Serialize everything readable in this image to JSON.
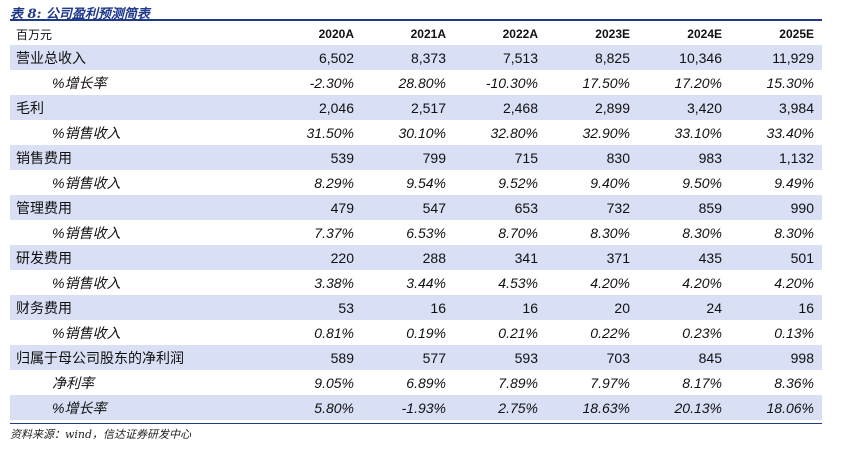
{
  "title": "表 8:  公司盈利预测简表",
  "header": [
    "百万元",
    "2020A",
    "2021A",
    "2022A",
    "2023E",
    "2024E",
    "2025E"
  ],
  "rows": [
    {
      "label": "营业总收入",
      "kind": "main",
      "values": [
        "6,502",
        "8,373",
        "7,513",
        "8,825",
        "10,346",
        "11,929"
      ]
    },
    {
      "label": "%增长率",
      "kind": "sub",
      "values": [
        "-2.30%",
        "28.80%",
        "-10.30%",
        "17.50%",
        "17.20%",
        "15.30%"
      ]
    },
    {
      "label": "毛利",
      "kind": "main",
      "values": [
        "2,046",
        "2,517",
        "2,468",
        "2,899",
        "3,420",
        "3,984"
      ]
    },
    {
      "label": "%销售收入",
      "kind": "sub",
      "values": [
        "31.50%",
        "30.10%",
        "32.80%",
        "32.90%",
        "33.10%",
        "33.40%"
      ]
    },
    {
      "label": "销售费用",
      "kind": "main",
      "values": [
        "539",
        "799",
        "715",
        "830",
        "983",
        "1,132"
      ]
    },
    {
      "label": "%销售收入",
      "kind": "sub",
      "values": [
        "8.29%",
        "9.54%",
        "9.52%",
        "9.40%",
        "9.50%",
        "9.49%"
      ]
    },
    {
      "label": "管理费用",
      "kind": "main",
      "values": [
        "479",
        "547",
        "653",
        "732",
        "859",
        "990"
      ]
    },
    {
      "label": "%销售收入",
      "kind": "sub",
      "values": [
        "7.37%",
        "6.53%",
        "8.70%",
        "8.30%",
        "8.30%",
        "8.30%"
      ]
    },
    {
      "label": "研发费用",
      "kind": "main",
      "values": [
        "220",
        "288",
        "341",
        "371",
        "435",
        "501"
      ]
    },
    {
      "label": "%销售收入",
      "kind": "sub",
      "values": [
        "3.38%",
        "3.44%",
        "4.53%",
        "4.20%",
        "4.20%",
        "4.20%"
      ]
    },
    {
      "label": "财务费用",
      "kind": "main",
      "values": [
        "53",
        "16",
        "16",
        "20",
        "24",
        "16"
      ]
    },
    {
      "label": "%销售收入",
      "kind": "sub",
      "values": [
        "0.81%",
        "0.19%",
        "0.21%",
        "0.22%",
        "0.23%",
        "0.13%"
      ]
    },
    {
      "label": "归属于母公司股东的净利润",
      "kind": "main",
      "values": [
        "589",
        "577",
        "593",
        "703",
        "845",
        "998"
      ]
    },
    {
      "label": "净利率",
      "kind": "sub",
      "values": [
        "9.05%",
        "6.89%",
        "7.89%",
        "7.97%",
        "8.17%",
        "8.36%"
      ]
    },
    {
      "label": "%增长率",
      "kind": "sub-hl",
      "values": [
        "5.80%",
        "-1.93%",
        "2.75%",
        "18.63%",
        "20.13%",
        "18.06%"
      ]
    }
  ],
  "source": "资料来源：wind，信达证券研发中心",
  "colors": {
    "accent": "#1f3a8a",
    "row_band": "#d9dff4"
  }
}
